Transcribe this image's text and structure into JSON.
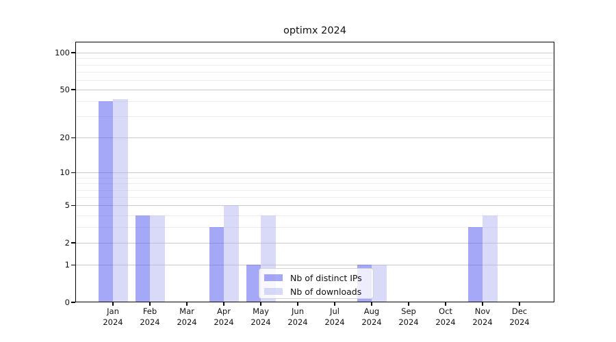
{
  "chart_data": {
    "type": "bar",
    "title": "optimx 2024",
    "xlabel": "",
    "ylabel": "",
    "scale": "log1p",
    "categories": [
      "Jan",
      "Feb",
      "Mar",
      "Apr",
      "May",
      "Jun",
      "Jul",
      "Aug",
      "Sep",
      "Oct",
      "Nov",
      "Dec"
    ],
    "year_label": "2024",
    "series": [
      {
        "name": "Nb of distinct IPs",
        "color": "rgba(82,86,240,0.52)",
        "values": [
          40,
          4,
          0,
          3,
          1,
          0,
          0,
          1,
          0,
          0,
          3,
          0
        ]
      },
      {
        "name": "Nb of downloads",
        "color": "rgba(178,182,240,0.5)",
        "values": [
          42,
          4,
          0,
          5,
          4,
          0,
          0,
          1,
          0,
          0,
          4,
          0
        ]
      }
    ],
    "y_axis": {
      "major_ticks": [
        0,
        1,
        2,
        5,
        10,
        20,
        50,
        100
      ],
      "minor_ticks": [
        3,
        4,
        6,
        7,
        8,
        9,
        30,
        40,
        60,
        70,
        80,
        90
      ],
      "ylim": [
        0,
        121
      ]
    },
    "legend": {
      "position": "lower-center-inside"
    },
    "grid": {
      "on": true,
      "major_color": "#c9c9c9",
      "minor_color": "#ececec"
    }
  }
}
